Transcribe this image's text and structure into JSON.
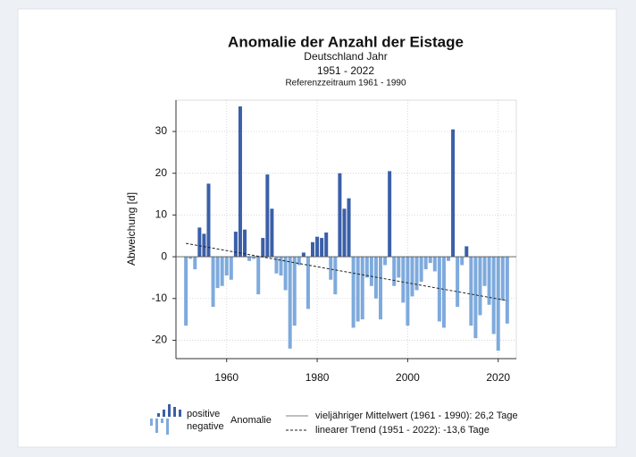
{
  "chart_data": {
    "type": "bar",
    "title": "Anomalie der Anzahl der Eistage",
    "subtitle": [
      "Deutschland Jahr",
      "1951 - 2022",
      "Referenzzeitraum 1961 - 1990"
    ],
    "y_label": "Abweichung [d]",
    "x": [
      1951,
      1952,
      1953,
      1954,
      1955,
      1956,
      1957,
      1958,
      1959,
      1960,
      1961,
      1962,
      1963,
      1964,
      1965,
      1966,
      1967,
      1968,
      1969,
      1970,
      1971,
      1972,
      1973,
      1974,
      1975,
      1976,
      1977,
      1978,
      1979,
      1980,
      1981,
      1982,
      1983,
      1984,
      1985,
      1986,
      1987,
      1988,
      1989,
      1990,
      1991,
      1992,
      1993,
      1994,
      1995,
      1996,
      1997,
      1998,
      1999,
      2000,
      2001,
      2002,
      2003,
      2004,
      2005,
      2006,
      2007,
      2008,
      2009,
      2010,
      2011,
      2012,
      2013,
      2014,
      2015,
      2016,
      2017,
      2018,
      2019,
      2020,
      2021,
      2022
    ],
    "values": [
      -16.5,
      -0.5,
      -3,
      7,
      5.5,
      17.5,
      -12,
      -7.5,
      -7,
      -4.5,
      -5.5,
      6,
      36,
      6.5,
      -1,
      -0.5,
      -9,
      4.5,
      19.7,
      11.5,
      -4,
      -4.5,
      -8,
      -22,
      -16.5,
      -2,
      1,
      -12.5,
      3.5,
      4.8,
      4.5,
      5.8,
      -5.5,
      -9,
      20,
      11.5,
      14,
      -17,
      -15.5,
      -15,
      -5,
      -7,
      -10,
      -15,
      -2,
      20.5,
      -7,
      -5,
      -11,
      -16.5,
      -9.5,
      -8,
      -6,
      -3,
      -1.5,
      -3.5,
      -15.5,
      -17,
      -1,
      30.5,
      -12,
      -2,
      2.5,
      -16.5,
      -19.5,
      -14,
      -7,
      -11.5,
      -18.5,
      -22.5,
      -10.5,
      -16
    ],
    "colors": {
      "positive": "#3b5fa8",
      "negative": "#7eaadd"
    },
    "trend": {
      "x": [
        1951,
        2022
      ],
      "values": [
        3.2,
        -10.5
      ]
    },
    "xlim": [
      1948.8,
      2024
    ],
    "xticks": [
      1960,
      1980,
      2000,
      2020
    ],
    "ylim": [
      -24.4,
      37.5
    ],
    "yticks": [
      -20,
      -10,
      0,
      10,
      20,
      30
    ],
    "grid": true,
    "legend": {
      "positive": "positive",
      "negative": "negative",
      "group": "Anomalie",
      "mean": "vieljähriger Mittelwert (1961 - 1990): 26,2 Tage",
      "trend": "linearer Trend (1951 - 2022): -13,6 Tage"
    }
  }
}
